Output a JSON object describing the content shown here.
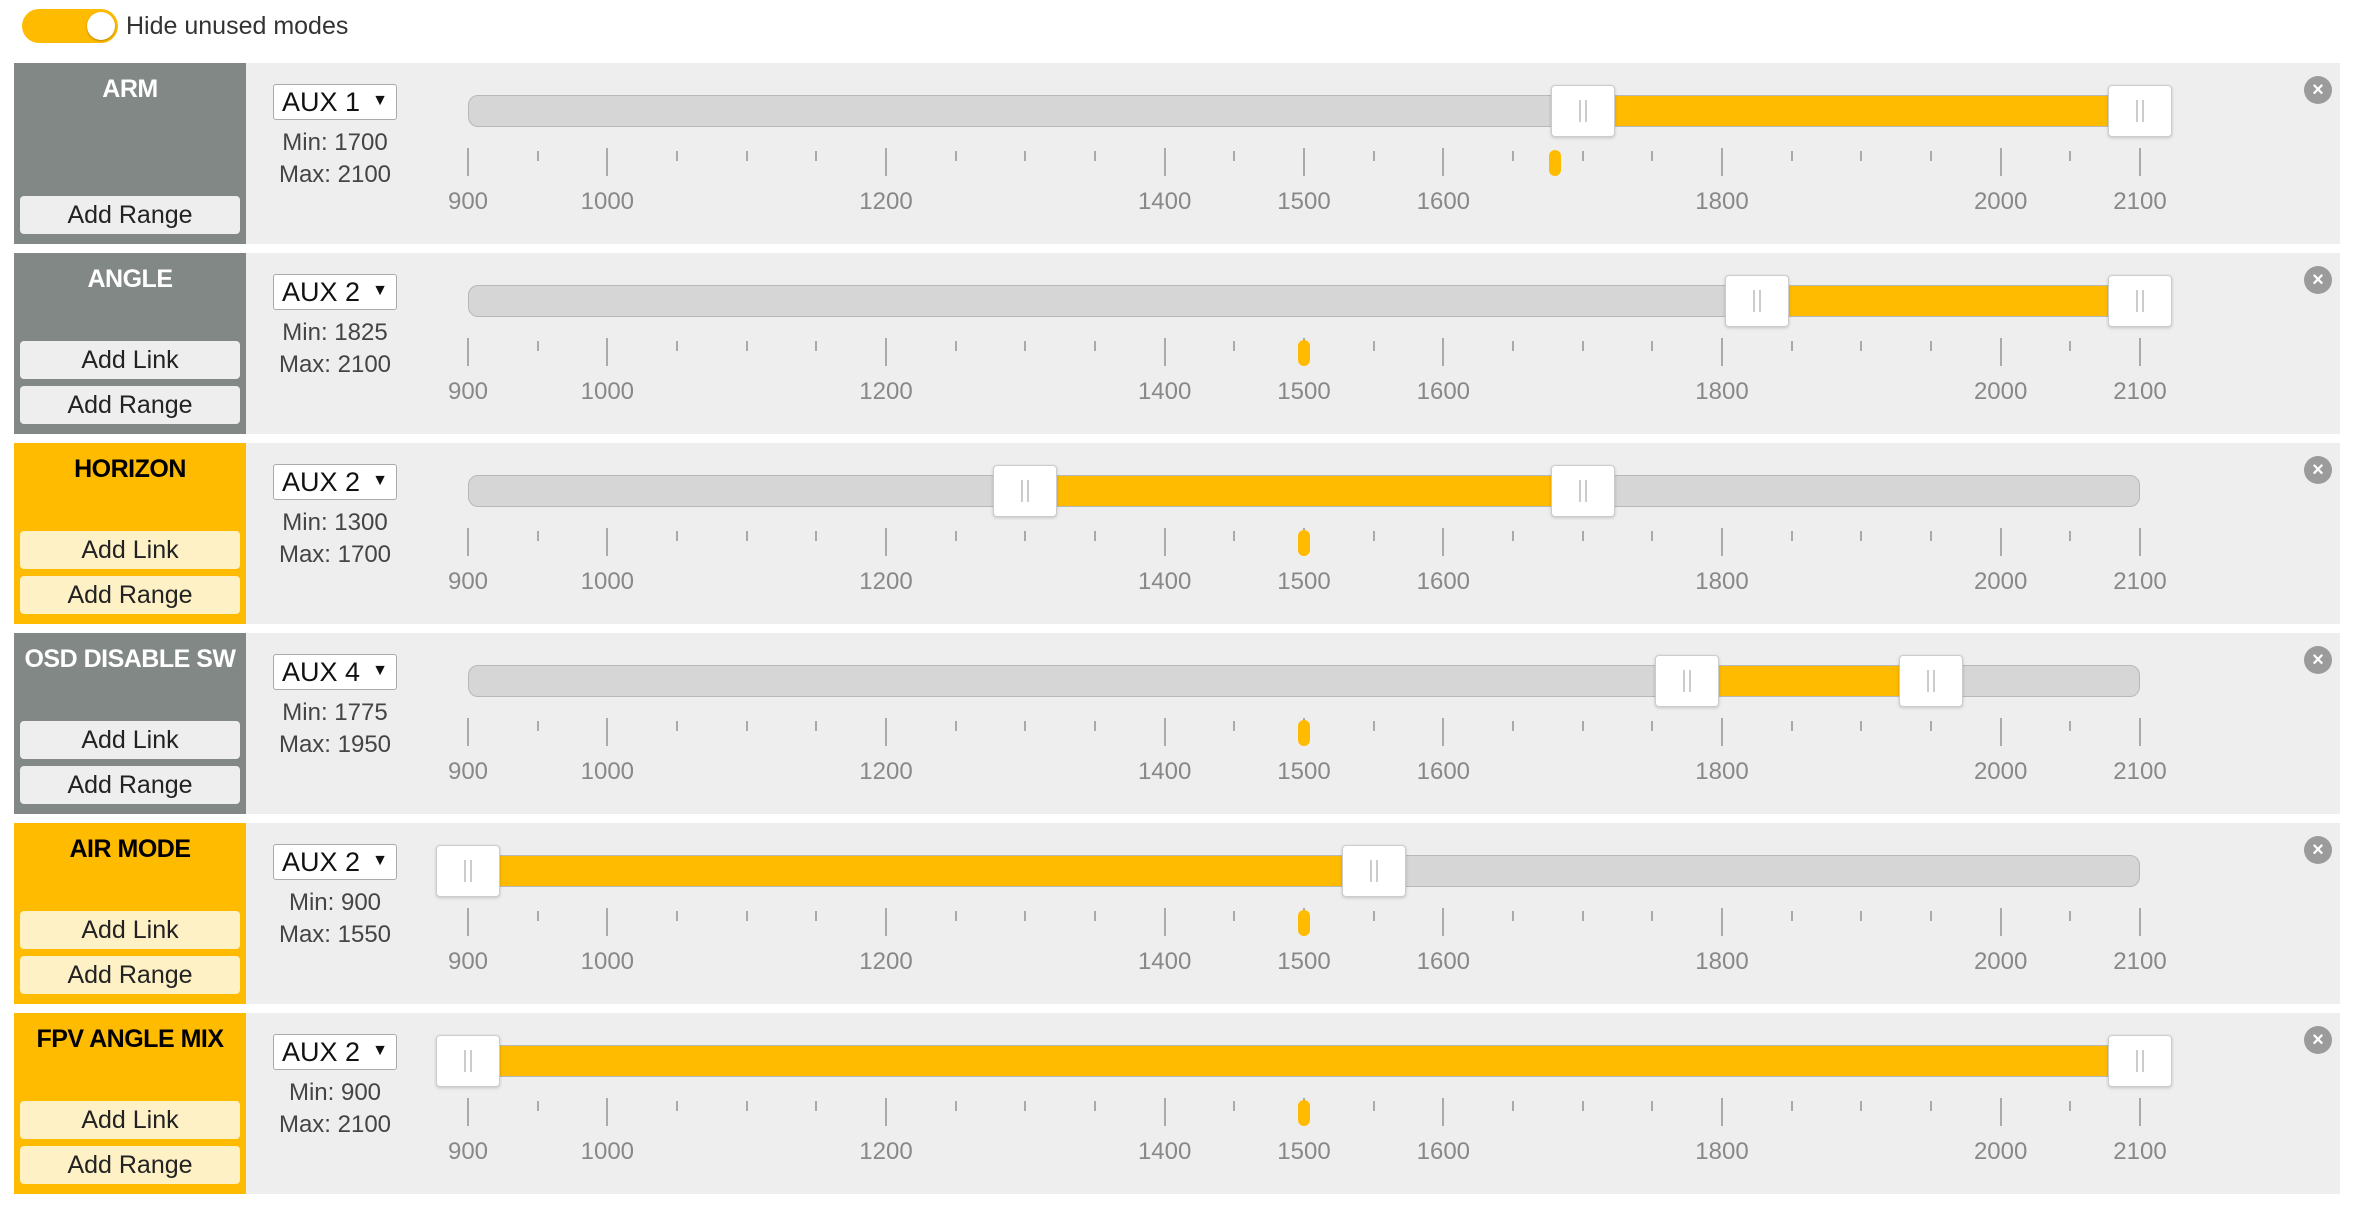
{
  "toggle": {
    "label": "Hide unused modes",
    "on": true
  },
  "colors": {
    "accent": "#ffbb00",
    "inactive": "#828885"
  },
  "scale": {
    "min": 900,
    "max": 2100,
    "labels": [
      900,
      1000,
      1200,
      1400,
      1500,
      1600,
      1800,
      2000,
      2100
    ]
  },
  "modes": [
    {
      "name": "ARM",
      "active": false,
      "link_label": "",
      "range_label": "Add Range",
      "channel": "AUX 1",
      "min_label": "Min: 1700",
      "max_label": "Max: 2100",
      "range_min": 1700,
      "range_max": 2100,
      "channel_value": 1680
    },
    {
      "name": "ANGLE",
      "active": false,
      "link_label": "Add Link",
      "range_label": "Add Range",
      "channel": "AUX 2",
      "min_label": "Min: 1825",
      "max_label": "Max: 2100",
      "range_min": 1825,
      "range_max": 2100,
      "channel_value": 1500
    },
    {
      "name": "HORIZON",
      "active": true,
      "link_label": "Add Link",
      "range_label": "Add Range",
      "channel": "AUX 2",
      "min_label": "Min: 1300",
      "max_label": "Max: 1700",
      "range_min": 1300,
      "range_max": 1700,
      "channel_value": 1500
    },
    {
      "name": "OSD DISABLE SW",
      "active": false,
      "link_label": "Add Link",
      "range_label": "Add Range",
      "channel": "AUX 4",
      "min_label": "Min: 1775",
      "max_label": "Max: 1950",
      "range_min": 1775,
      "range_max": 1950,
      "channel_value": 1500
    },
    {
      "name": "AIR MODE",
      "active": true,
      "link_label": "Add Link",
      "range_label": "Add Range",
      "channel": "AUX 2",
      "min_label": "Min: 900",
      "max_label": "Max: 1550",
      "range_min": 900,
      "range_max": 1550,
      "channel_value": 1500
    },
    {
      "name": "FPV ANGLE MIX",
      "active": true,
      "link_label": "Add Link",
      "range_label": "Add Range",
      "channel": "AUX 2",
      "min_label": "Min: 900",
      "max_label": "Max: 2100",
      "range_min": 900,
      "range_max": 2100,
      "channel_value": 1500
    }
  ]
}
